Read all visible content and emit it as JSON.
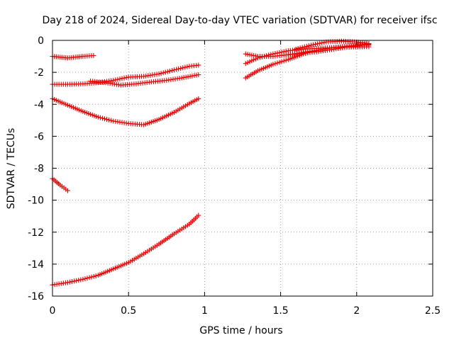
{
  "chart_data": {
    "type": "scatter",
    "title": "Day 218 of 2024, Sidereal Day-to-day VTEC variation (SDTVAR) for receiver ifsc",
    "xlabel": "GPS time / hours",
    "ylabel": "SDTVAR / TECUs",
    "xlim": [
      0,
      2.5
    ],
    "ylim": [
      -16,
      0
    ],
    "x_ticks": [
      "0",
      "0.5",
      "1",
      "1.5",
      "2",
      "2.5"
    ],
    "y_ticks": [
      "0",
      "-2",
      "-4",
      "-6",
      "-8",
      "-10",
      "-12",
      "-14",
      "-16"
    ],
    "x_tick_values": [
      0,
      0.5,
      1,
      1.5,
      2,
      2.5
    ],
    "y_tick_values": [
      0,
      -2,
      -4,
      -6,
      -8,
      -10,
      -12,
      -14,
      -16
    ],
    "grid": true,
    "marker": "plus",
    "color": "#ee0000",
    "series": [
      {
        "x": [
          0.0,
          0.05,
          0.1,
          0.15,
          0.2,
          0.27
        ],
        "y": [
          -1.0,
          -1.05,
          -1.1,
          -1.05,
          -1.0,
          -0.95
        ]
      },
      {
        "x": [
          0.0,
          0.1,
          0.2,
          0.3,
          0.4,
          0.5,
          0.6,
          0.7,
          0.8,
          0.9,
          0.96
        ],
        "y": [
          -2.75,
          -2.75,
          -2.72,
          -2.65,
          -2.5,
          -2.3,
          -2.25,
          -2.1,
          -1.85,
          -1.62,
          -1.55
        ]
      },
      {
        "x": [
          0.25,
          0.35,
          0.45,
          0.55,
          0.65,
          0.75,
          0.85,
          0.96
        ],
        "y": [
          -2.55,
          -2.65,
          -2.8,
          -2.72,
          -2.6,
          -2.5,
          -2.35,
          -2.15
        ]
      },
      {
        "x": [
          0.0,
          0.1,
          0.2,
          0.3,
          0.4,
          0.5,
          0.6,
          0.7,
          0.8,
          0.9,
          0.96
        ],
        "y": [
          -3.65,
          -4.05,
          -4.45,
          -4.8,
          -5.05,
          -5.2,
          -5.28,
          -4.95,
          -4.5,
          -3.95,
          -3.65
        ]
      },
      {
        "x": [
          0.0,
          0.05,
          0.1
        ],
        "y": [
          -8.65,
          -9.05,
          -9.4
        ]
      },
      {
        "x": [
          0.0,
          0.1,
          0.2,
          0.3,
          0.4,
          0.5,
          0.6,
          0.7,
          0.8,
          0.9,
          0.96
        ],
        "y": [
          -15.3,
          -15.15,
          -14.95,
          -14.7,
          -14.3,
          -13.9,
          -13.35,
          -12.75,
          -12.1,
          -11.5,
          -10.95
        ]
      },
      {
        "x": [
          1.27,
          1.35,
          1.45,
          1.55,
          1.65,
          1.75,
          1.85,
          1.95,
          2.05,
          2.08
        ],
        "y": [
          -2.35,
          -1.9,
          -1.5,
          -1.2,
          -0.85,
          -0.6,
          -0.45,
          -0.35,
          -0.3,
          -0.3
        ]
      },
      {
        "x": [
          1.27,
          1.35,
          1.45,
          1.55,
          1.65,
          1.75,
          1.85,
          1.95,
          2.05,
          2.08
        ],
        "y": [
          -1.45,
          -1.1,
          -0.85,
          -0.65,
          -0.55,
          -0.5,
          -0.45,
          -0.42,
          -0.4,
          -0.4
        ]
      },
      {
        "x": [
          1.27,
          1.35,
          1.45,
          1.55,
          1.65,
          1.75,
          1.85,
          1.95,
          2.05,
          2.08
        ],
        "y": [
          -0.85,
          -1.0,
          -1.0,
          -0.9,
          -0.75,
          -0.6,
          -0.45,
          -0.35,
          -0.25,
          -0.2
        ]
      },
      {
        "x": [
          1.55,
          1.65,
          1.75,
          1.85,
          1.95,
          2.05,
          2.08
        ],
        "y": [
          -0.9,
          -0.8,
          -0.7,
          -0.55,
          -0.4,
          -0.3,
          -0.25
        ]
      },
      {
        "x": [
          1.6,
          1.7,
          1.8,
          1.9,
          2.0,
          2.08
        ],
        "y": [
          -0.55,
          -0.3,
          -0.1,
          -0.05,
          -0.1,
          -0.2
        ]
      }
    ]
  }
}
